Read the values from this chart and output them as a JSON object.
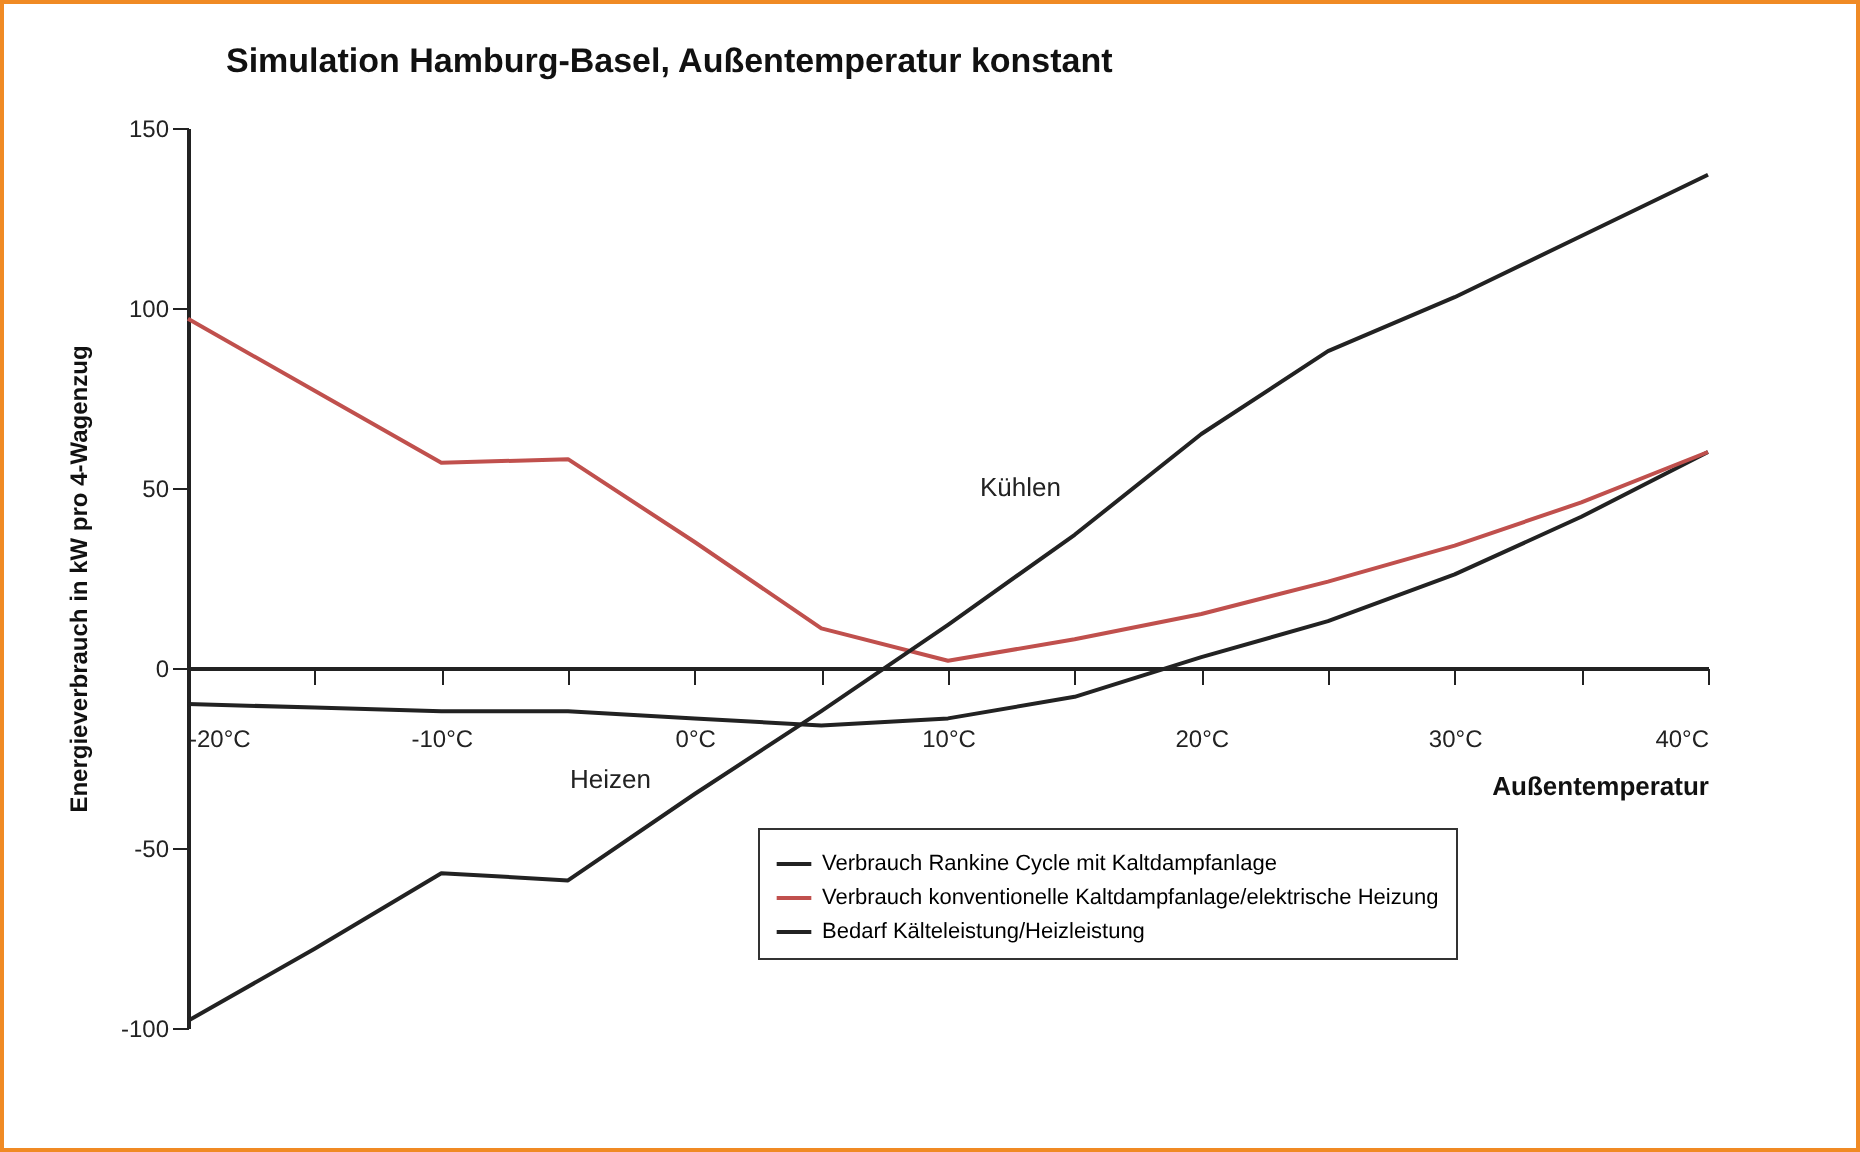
{
  "chart_data": {
    "type": "line",
    "title": "Simulation Hamburg-Basel, Außentemperatur konstant",
    "xlabel": "Außentemperatur",
    "ylabel": "Energieverbrauch in kW pro 4-Wagenzug",
    "x": [
      -20,
      -15,
      -10,
      -5,
      0,
      5,
      10,
      15,
      20,
      25,
      30,
      35,
      40
    ],
    "series": [
      {
        "name": "Verbrauch Rankine Cycle mit Kaltdampfanlage",
        "color": "#222222",
        "values": [
          -10,
          -11,
          -12,
          -12,
          -14,
          -16,
          -14,
          -8,
          3,
          13,
          26,
          42,
          60
        ]
      },
      {
        "name": "Verbrauch konventionelle Kaltdampfanlage/elektrische Heizung",
        "color": "#c0504d",
        "values": [
          97,
          77,
          57,
          58,
          35,
          11,
          2,
          8,
          15,
          24,
          34,
          46,
          60
        ]
      },
      {
        "name": "Bedarf Kälteleistung/Heizleistung",
        "color": "#222222",
        "values": [
          -98,
          -78,
          -57,
          -59,
          -35,
          -12,
          12,
          37,
          65,
          88,
          103,
          120,
          137
        ]
      }
    ],
    "xlim": [
      -20,
      40
    ],
    "xticks": [
      {
        "value": -20,
        "label": "-20°C"
      },
      {
        "value": -15,
        "label": null
      },
      {
        "value": -10,
        "label": "-10°C"
      },
      {
        "value": -5,
        "label": null
      },
      {
        "value": 0,
        "label": "0°C"
      },
      {
        "value": 5,
        "label": null
      },
      {
        "value": 10,
        "label": "10°C"
      },
      {
        "value": 15,
        "label": null
      },
      {
        "value": 20,
        "label": "20°C"
      },
      {
        "value": 25,
        "label": null
      },
      {
        "value": 30,
        "label": "30°C"
      },
      {
        "value": 35,
        "label": null
      },
      {
        "value": 40,
        "label": "40°C"
      }
    ],
    "ylim": [
      -100,
      150
    ],
    "yticks": [
      -100,
      -50,
      0,
      50,
      100,
      150
    ],
    "annotations": [
      "Kühlen",
      "Heizen"
    ],
    "grid": false,
    "legend": "bottom",
    "marker": "none",
    "line_style": "solid"
  }
}
